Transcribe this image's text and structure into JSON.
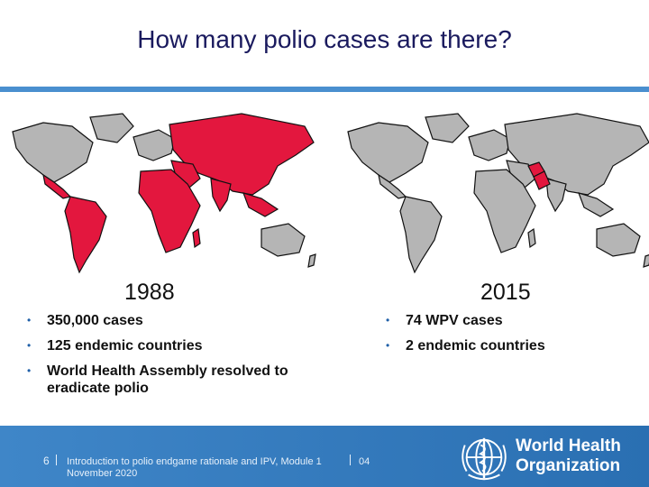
{
  "title": "How many polio cases are there?",
  "colors": {
    "endemic": "#e3173e",
    "non_endemic": "#b5b5b5",
    "accent": "#4a8fcf",
    "title": "#1a1a5e"
  },
  "panels": [
    {
      "year": "1988",
      "bullets": [
        "350,000 cases",
        "125 endemic countries",
        "World Health Assembly resolved to eradicate polio"
      ]
    },
    {
      "year": "2015",
      "bullets": [
        "74 WPV cases",
        "2 endemic countries"
      ]
    }
  ],
  "footer": {
    "page_number": "6",
    "text": "Introduction to polio endgame rationale and IPV, Module 1",
    "code": "04",
    "date": "November 2020",
    "org_line1": "World Health",
    "org_line2": "Organization"
  }
}
